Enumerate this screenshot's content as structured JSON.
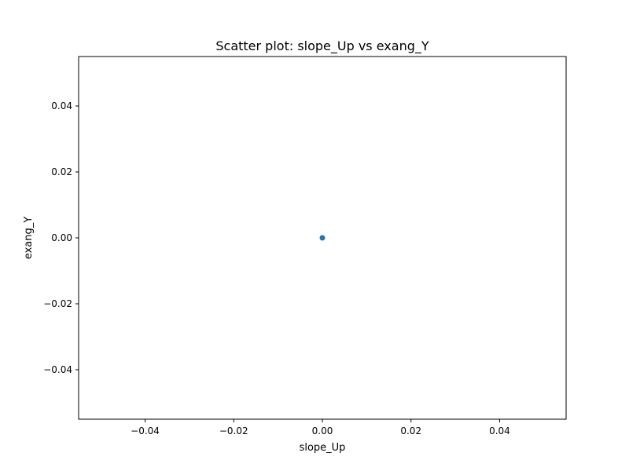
{
  "chart_data": {
    "type": "scatter",
    "title": "Scatter plot: slope_Up vs exang_Y",
    "xlabel": "slope_Up",
    "ylabel": "exang_Y",
    "xlim": [
      -0.055,
      0.055
    ],
    "ylim": [
      -0.055,
      0.055
    ],
    "x_ticks": [
      {
        "value": -0.04,
        "label": "−0.04"
      },
      {
        "value": -0.02,
        "label": "−0.02"
      },
      {
        "value": 0.0,
        "label": "0.00"
      },
      {
        "value": 0.02,
        "label": "0.02"
      },
      {
        "value": 0.04,
        "label": "0.04"
      }
    ],
    "y_ticks": [
      {
        "value": 0.04,
        "label": "0.04"
      },
      {
        "value": 0.02,
        "label": "0.02"
      },
      {
        "value": 0.0,
        "label": "0.00"
      },
      {
        "value": -0.02,
        "label": "−0.02"
      },
      {
        "value": -0.04,
        "label": "−0.04"
      }
    ],
    "grid": false,
    "series": [
      {
        "name": "slope_Up vs exang_Y",
        "color": "#1f77b4",
        "points": [
          {
            "x": 0.0,
            "y": 0.0
          }
        ]
      }
    ]
  }
}
